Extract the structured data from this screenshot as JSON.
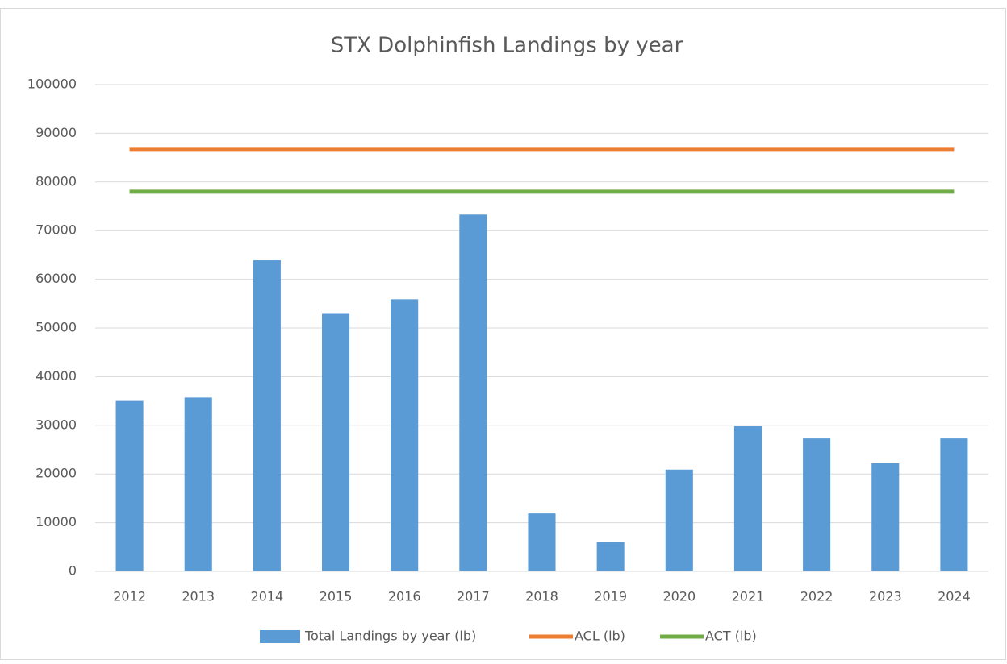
{
  "chart_data": {
    "type": "bar",
    "title": "STX Dolphinfish Landings by year",
    "categories": [
      "2012",
      "2013",
      "2014",
      "2015",
      "2016",
      "2017",
      "2018",
      "2019",
      "2020",
      "2021",
      "2022",
      "2023",
      "2024"
    ],
    "series": [
      {
        "name": "Total Landings by year (lb)",
        "type": "bar",
        "color": "#5b9bd5",
        "values": [
          35000,
          35700,
          63900,
          52900,
          55900,
          73300,
          11900,
          6100,
          20900,
          29800,
          27300,
          22200,
          27300
        ]
      },
      {
        "name": "ACL (lb)",
        "type": "line",
        "color": "#ed7d31",
        "values": [
          86600,
          86600,
          86600,
          86600,
          86600,
          86600,
          86600,
          86600,
          86600,
          86600,
          86600,
          86600,
          86600
        ]
      },
      {
        "name": "ACT (lb)",
        "type": "line",
        "color": "#70ad47",
        "values": [
          78000,
          78000,
          78000,
          78000,
          78000,
          78000,
          78000,
          78000,
          78000,
          78000,
          78000,
          78000,
          78000
        ]
      }
    ],
    "ylim": [
      0,
      100000
    ],
    "yticks": [
      0,
      10000,
      20000,
      30000,
      40000,
      50000,
      60000,
      70000,
      80000,
      90000,
      100000
    ],
    "grid": true,
    "legend": "bottom"
  }
}
